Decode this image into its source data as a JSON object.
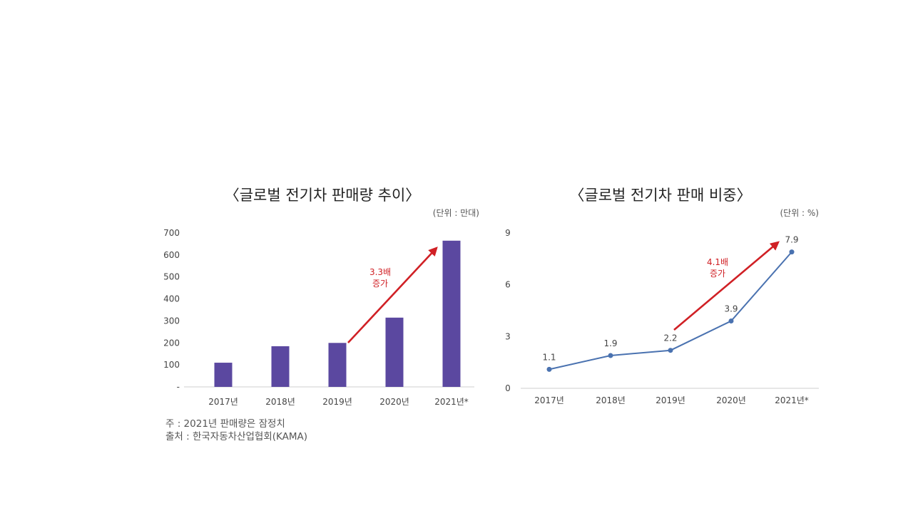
{
  "chart_data": [
    {
      "type": "bar",
      "title": "〈글로벌 전기차 판매량 추이〉",
      "unit": "(단위 : 만대)",
      "categories": [
        "2017년",
        "2018년",
        "2019년",
        "2020년",
        "2021년*"
      ],
      "values": [
        110,
        185,
        200,
        315,
        665
      ],
      "ylim": [
        0,
        700
      ],
      "yticks": [
        "-",
        "100",
        "200",
        "300",
        "400",
        "500",
        "600",
        "700"
      ],
      "bar_color": "#5b48a0",
      "annotation": {
        "line1": "3.3배",
        "line2": "증가",
        "color": "#d02025"
      },
      "grid": false
    },
    {
      "type": "line",
      "title": "〈글로벌 전기차 판매 비중〉",
      "unit": "(단위 : %)",
      "categories": [
        "2017년",
        "2018년",
        "2019년",
        "2020년",
        "2021년*"
      ],
      "values": [
        1.1,
        1.9,
        2.2,
        3.9,
        7.9
      ],
      "data_labels": [
        "1.1",
        "1.9",
        "2.2",
        "3.9",
        "7.9"
      ],
      "ylim": [
        0,
        9
      ],
      "yticks": [
        "0",
        "3",
        "6",
        "9"
      ],
      "line_color": "#4a72b0",
      "annotation": {
        "line1": "4.1배",
        "line2": "증가",
        "color": "#d02025"
      },
      "grid": false
    }
  ],
  "notes": {
    "note": "주 : 2021년 판매량은 잠정치",
    "source": "출처 : 한국자동차산업협회(KAMA)"
  }
}
